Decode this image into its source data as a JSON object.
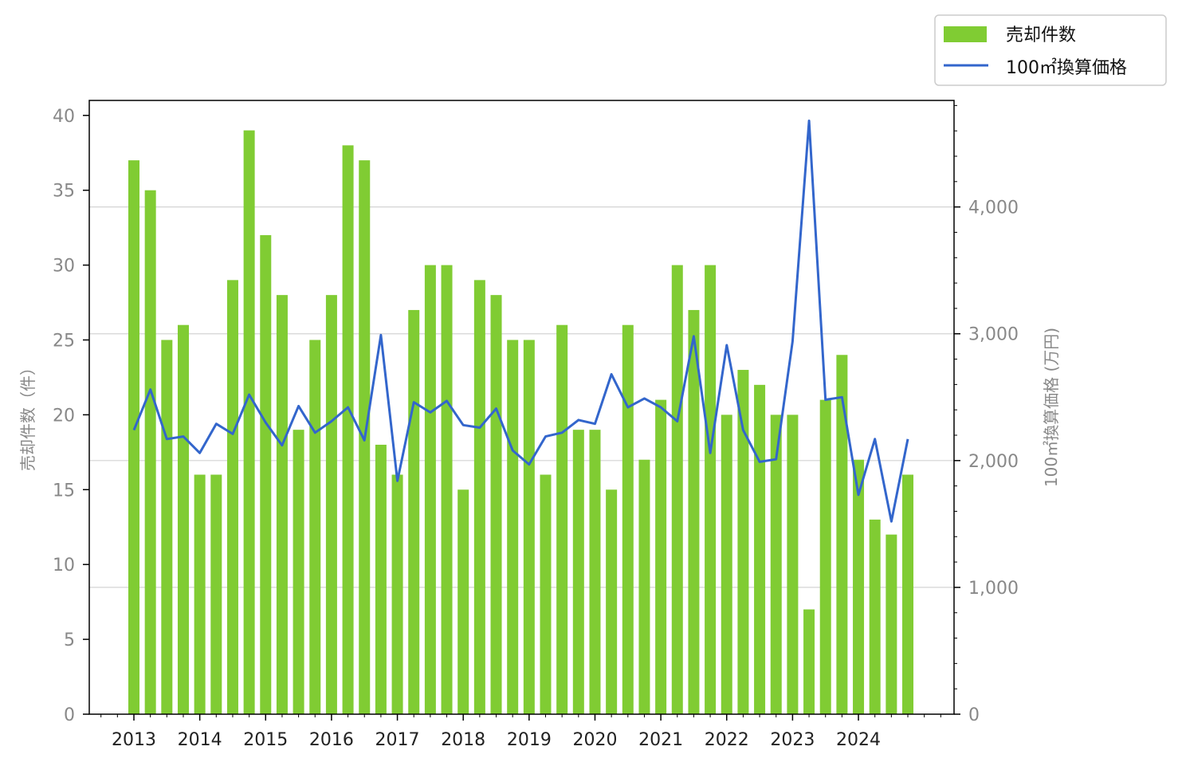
{
  "chart_data": {
    "type": "bar",
    "y_left_label": "売却件数（件）",
    "y_right_label": "100㎡換算価格 (万円)",
    "left_ylim": [
      0,
      41
    ],
    "right_ylim": [
      0,
      4840
    ],
    "left_ticks": [
      "0",
      "5",
      "10",
      "15",
      "20",
      "25",
      "30",
      "35",
      "40"
    ],
    "right_ticks": [
      "0",
      "1,000",
      "2,000",
      "3,000",
      "4,000"
    ],
    "year_labels": [
      "2013",
      "2014",
      "2015",
      "2016",
      "2017",
      "2018",
      "2019",
      "2020",
      "2021",
      "2022",
      "2023",
      "2024"
    ],
    "quarters": [
      "2013Q1",
      "2013Q2",
      "2013Q3",
      "2013Q4",
      "2014Q1",
      "2014Q2",
      "2014Q3",
      "2014Q4",
      "2015Q1",
      "2015Q2",
      "2015Q3",
      "2015Q4",
      "2016Q1",
      "2016Q2",
      "2016Q3",
      "2016Q4",
      "2017Q1",
      "2017Q2",
      "2017Q3",
      "2017Q4",
      "2018Q1",
      "2018Q2",
      "2018Q3",
      "2018Q4",
      "2019Q1",
      "2019Q2",
      "2019Q3",
      "2019Q4",
      "2020Q1",
      "2020Q2",
      "2020Q3",
      "2020Q4",
      "2021Q1",
      "2021Q2",
      "2021Q3",
      "2021Q4",
      "2022Q1",
      "2022Q2",
      "2022Q3",
      "2022Q4",
      "2023Q1",
      "2023Q2",
      "2023Q3",
      "2023Q4",
      "2024Q1",
      "2024Q2",
      "2024Q3",
      "2024Q4"
    ],
    "series": [
      {
        "name": "売却件数",
        "type": "bar",
        "axis": "left",
        "color": "#80cc33",
        "values": [
          37,
          35,
          25,
          26,
          16,
          16,
          29,
          39,
          32,
          28,
          19,
          25,
          28,
          38,
          37,
          18,
          16,
          27,
          30,
          30,
          15,
          29,
          28,
          25,
          25,
          16,
          26,
          19,
          19,
          15,
          26,
          17,
          21,
          30,
          27,
          30,
          20,
          23,
          22,
          20,
          20,
          7,
          21,
          24,
          17,
          13,
          12,
          16
        ]
      },
      {
        "name": "100㎡換算価格",
        "type": "line",
        "axis": "right",
        "color": "#3366cc",
        "values": [
          2240,
          2560,
          2170,
          2190,
          2060,
          2290,
          2210,
          2520,
          2300,
          2120,
          2430,
          2220,
          2310,
          2420,
          2160,
          2990,
          1840,
          2460,
          2380,
          2470,
          2280,
          2260,
          2410,
          2080,
          1970,
          2190,
          2220,
          2320,
          2290,
          2680,
          2420,
          2490,
          2420,
          2310,
          2980,
          2060,
          2910,
          2240,
          1990,
          2010,
          2940,
          4680,
          2480,
          2500,
          1730,
          2170,
          1520,
          2170
        ]
      }
    ],
    "legend_position": "top-right",
    "grid": "horizontal on right axis"
  }
}
